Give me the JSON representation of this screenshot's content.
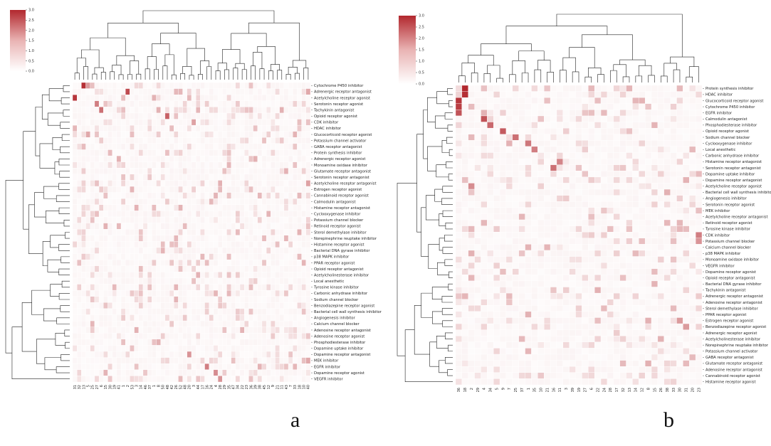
{
  "panels": [
    {
      "letter": "a",
      "colorbar_ticks": [
        "3.0",
        "2.5",
        "2.0",
        "1.5",
        "1.0",
        "0.5",
        "0.0"
      ],
      "col_labels": [
        "31",
        "32",
        "13",
        "5",
        "25",
        "27",
        "6",
        "15",
        "30",
        "19",
        "41",
        "1",
        "2",
        "53",
        "3",
        "14",
        "46",
        "37",
        "1",
        "8",
        "50",
        "48",
        "42",
        "26",
        "52",
        "48",
        "20",
        "3",
        "44",
        "17",
        "16",
        "24",
        "4",
        "28",
        "29",
        "35",
        "47",
        "34",
        "22",
        "23",
        "36",
        "39",
        "38",
        "45",
        "12",
        "9",
        "21",
        "11",
        "43",
        "7",
        "33",
        "18",
        "10",
        "40"
      ],
      "row_labels": [
        "Cytochrome P450 inhibitor",
        "Adrenergic receptor antagonist",
        "Acetylcholine receptor agonist",
        "Serotonin receptor agonist",
        "Tachykinin antagonist",
        "Opioid receptor agonist",
        "CDK inhibitor",
        "HDAC inhibitor",
        "Glucocorticoid receptor agonist",
        "Potassium channel activator",
        "GABA receptor antagonist",
        "Protein synthesis inhibitor",
        "Adrenergic receptor agonist",
        "Monoamine oxidase inhibitor",
        "Glutamate receptor antagonist",
        "Serotonin receptor antagonist",
        "Acetylcholine receptor antagonist",
        "Estrogen receptor agonist",
        "Cannabinoid receptor agonist",
        "Calmodulin antagonist",
        "Histamine receptor antagonist",
        "Cyclooxygenase inhibitor",
        "Potassium channel blocker",
        "Retinoid receptor agonist",
        "Sterol demethylase inhibitor",
        "Norepinephrine reuptake inhibitor",
        "Histamine receptor agonist",
        "Bacterial DNA gyrase inhibitor",
        "p38 MAPK inhibitor",
        "PPAR receptor agonist",
        "Opioid receptor antagonist",
        "Acetylcholinesterase inhibitor",
        "Local anesthetic",
        "Tyrosine kinase inhibitor",
        "Carbonic anhydrase inhibitor",
        "Sodium channel blocker",
        "Benzodiazepine receptor agonist",
        "Bacterial cell wall synthesis inhibitor",
        "Angiogenesis inhibitor",
        "Calcium channel blocker",
        "Adenosine receptor antagonist",
        "Adenosine receptor agonist",
        "Phosphodiesterase inhibitor",
        "Dopamine uptake inhibitor",
        "Dopamine receptor antagonist",
        "MEK inhibitor",
        "EGFR inhibitor",
        "Dopamine receptor agonist",
        "VEGFR inhibitor"
      ]
    },
    {
      "letter": "b",
      "colorbar_ticks": [
        "3.0",
        "2.5",
        "2.0",
        "1.5",
        "1.0",
        "0.5",
        "0.0"
      ],
      "col_labels": [
        "36",
        "18",
        "2",
        "29",
        "4",
        "34",
        "5",
        "9",
        "7",
        "25",
        "37",
        "1",
        "35",
        "10",
        "21",
        "16",
        "11",
        "3",
        "39",
        "19",
        "27",
        "6",
        "22",
        "24",
        "28",
        "17",
        "32",
        "13",
        "14",
        "12",
        "8",
        "15",
        "26",
        "38",
        "33",
        "30",
        "31",
        "20",
        "23"
      ],
      "row_labels": [
        "Protein synthesis inhibitor",
        "HDAC inhibitor",
        "Glucocorticoid receptor agonist",
        "Cytochrome P450 inhibitor",
        "EGFR inhibitor",
        "Calmodulin antagonist",
        "Phosphodiesterase inhibitor",
        "Opioid receptor agonist",
        "Sodium channel blocker",
        "Cyclooxygenase inhibitor",
        "Local anesthetic",
        "Carbonic anhydrase inhibitor",
        "Histamine receptor antagonist",
        "Serotonin receptor antagonist",
        "Dopamine uptake inhibitor",
        "Dopamine receptor antagonist",
        "Acetylcholine receptor agonist",
        "Bacterial cell wall synthesis inhibito",
        "Angiogenesis inhibitor",
        "Serotonin receptor agonist",
        "MEK inhibitor",
        "Acetylcholine receptor antagonist",
        "Retinoid receptor agonist",
        "Tyrosine kinase inhibitor",
        "CDK inhibitor",
        "Potassium channel blocker",
        "Calcium channel blocker",
        "p38 MAPK inhibitor",
        "Monoamine oxidase inhibitor",
        "VEGFR inhibitor",
        "Dopamine receptor agonist",
        "Opioid receptor antagonist",
        "Bacterial DNA gyrase inhibitor",
        "Tachykinin antagonist",
        "Adrenergic receptor antagonist",
        "Adenosine receptor antagonist",
        "Sterol demethylase inhibitor",
        "PPAR receptor agonist",
        "Estrogen receptor agonist",
        "Benzodiazepine receptor agonist",
        "Adrenergic receptor agonist",
        "Acetylcholinesterase inhibitor",
        "Norepinephrine reuptake inhibitor",
        "Potassium channel activator",
        "GABA receptor antagonist",
        "Glutamate receptor antagonist",
        "Adenosine receptor antagonist",
        "Cannabinoid receptor agonist",
        "Histamine receptor agonist"
      ]
    }
  ],
  "chart_data": [
    {
      "type": "heatmap",
      "panel": "a",
      "value_range": [
        0,
        3.0
      ],
      "colormap": [
        "#ffffff",
        "#b2282e"
      ],
      "grid": true,
      "dendrograms": [
        "top",
        "left"
      ],
      "colorbar_placement": "top-left",
      "strong_cells": [
        {
          "row": 0,
          "col": 2,
          "value": 2.9
        },
        {
          "row": 0,
          "col": 3,
          "value": 1.4
        },
        {
          "row": 0,
          "col": 4,
          "value": 0.9
        },
        {
          "row": 1,
          "col": 12,
          "value": 2.5
        },
        {
          "row": 2,
          "col": 0,
          "value": 2.8
        },
        {
          "row": 3,
          "col": 5,
          "value": 1.8
        },
        {
          "row": 4,
          "col": 6,
          "value": 2.0
        },
        {
          "row": 5,
          "col": 21,
          "value": 2.2
        },
        {
          "row": 6,
          "col": 27,
          "value": 1.3
        },
        {
          "row": 7,
          "col": 0,
          "value": 1.0
        },
        {
          "row": 8,
          "col": 3,
          "value": 1.2
        },
        {
          "row": 16,
          "col": 53,
          "value": 1.3
        },
        {
          "row": 1,
          "col": 53,
          "value": 1.2
        },
        {
          "row": 45,
          "col": 53,
          "value": 1.2
        },
        {
          "row": 46,
          "col": 30,
          "value": 1.8
        },
        {
          "row": 47,
          "col": 32,
          "value": 1.6
        },
        {
          "row": 48,
          "col": 33,
          "value": 1.5
        },
        {
          "row": 44,
          "col": 26,
          "value": 1.5
        }
      ]
    },
    {
      "type": "heatmap",
      "panel": "b",
      "value_range": [
        0,
        3.0
      ],
      "colormap": [
        "#ffffff",
        "#b2282e"
      ],
      "grid": true,
      "dendrograms": [
        "top",
        "left"
      ],
      "colorbar_placement": "top-left",
      "strong_cells": [
        {
          "row": 0,
          "col": 1,
          "value": 3.0
        },
        {
          "row": 1,
          "col": 1,
          "value": 2.9
        },
        {
          "row": 2,
          "col": 0,
          "value": 2.8
        },
        {
          "row": 3,
          "col": 0,
          "value": 2.7
        },
        {
          "row": 4,
          "col": 0,
          "value": 2.4
        },
        {
          "row": 5,
          "col": 4,
          "value": 2.4
        },
        {
          "row": 6,
          "col": 5,
          "value": 2.1
        },
        {
          "row": 7,
          "col": 7,
          "value": 2.3
        },
        {
          "row": 8,
          "col": 9,
          "value": 2.0
        },
        {
          "row": 9,
          "col": 11,
          "value": 1.9
        },
        {
          "row": 10,
          "col": 12,
          "value": 1.8
        },
        {
          "row": 12,
          "col": 16,
          "value": 1.7
        },
        {
          "row": 13,
          "col": 15,
          "value": 2.0
        },
        {
          "row": 16,
          "col": 2,
          "value": 1.6
        },
        {
          "row": 24,
          "col": 38,
          "value": 1.8
        },
        {
          "row": 25,
          "col": 38,
          "value": 1.5
        },
        {
          "row": 38,
          "col": 35,
          "value": 1.4
        },
        {
          "row": 39,
          "col": 36,
          "value": 1.4
        }
      ]
    }
  ]
}
